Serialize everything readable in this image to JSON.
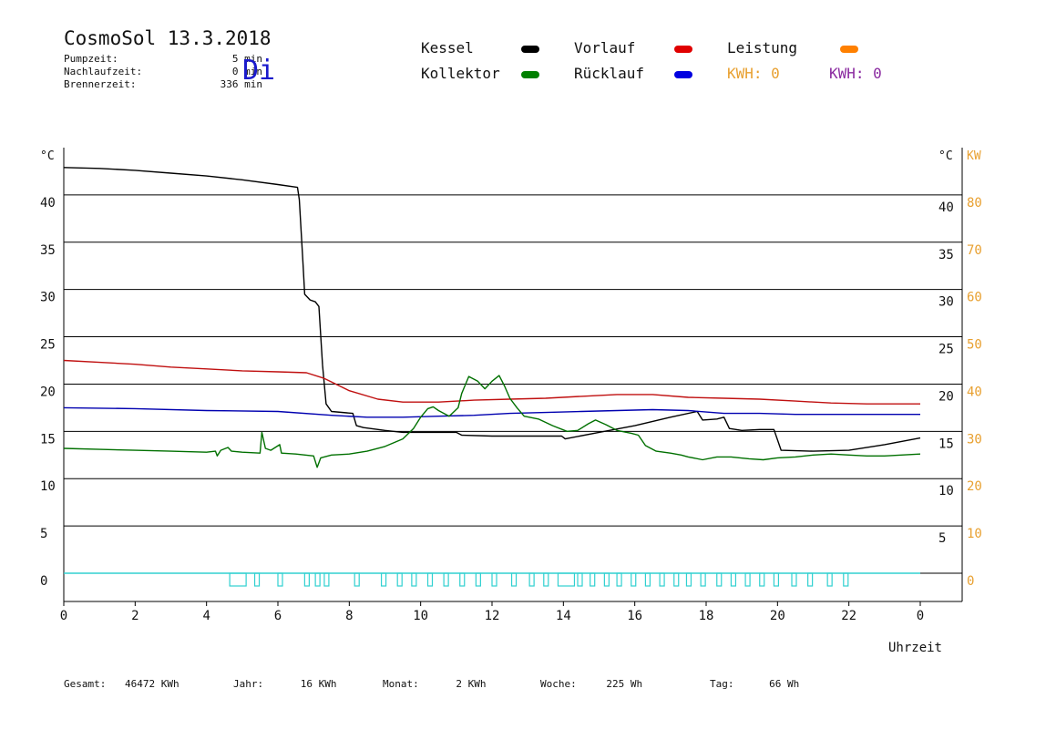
{
  "header": {
    "title": "CosmoSol 13.3.2018",
    "day": "Di",
    "stats": [
      {
        "label": "Pumpzeit:",
        "value": "5 min"
      },
      {
        "label": "Nachlaufzeit:",
        "value": "0 min"
      },
      {
        "label": "Brennerzeit:",
        "value": "336 min"
      }
    ]
  },
  "legend": {
    "kessel": {
      "label": "Kessel",
      "color": "#000000"
    },
    "vorlauf": {
      "label": "Vorlauf",
      "color": "#e00000"
    },
    "leistung": {
      "label": "Leistung",
      "color": "#ff8000"
    },
    "kollektor": {
      "label": "Kollektor",
      "color": "#008000"
    },
    "ruecklauf": {
      "label": "Rücklauf",
      "color": "#0000e0"
    },
    "kwh1": {
      "text": "KWH: 0",
      "color": "#e8a030"
    },
    "kwh2": {
      "text": "KWH: 0",
      "color": "#8a2aa0"
    }
  },
  "footer": {
    "items": [
      {
        "label": "Gesamt:",
        "value": "46472 KWh"
      },
      {
        "label": "Jahr:",
        "value": "16 KWh"
      },
      {
        "label": "Monat:",
        "value": "2 KWh"
      },
      {
        "label": "Woche:",
        "value": "225 Wh"
      },
      {
        "label": "Tag:",
        "value": "66 Wh"
      }
    ]
  },
  "chart_data": {
    "type": "line",
    "xlabel": "Uhrzeit",
    "ylabel_left": "°C",
    "ylabel_right": "°C",
    "ylabel_power": "KW",
    "xlim": [
      0,
      24
    ],
    "ylim": [
      0,
      45
    ],
    "power_lim": [
      0,
      90
    ],
    "x_ticks": [
      "0",
      "2",
      "4",
      "6",
      "8",
      "10",
      "12",
      "14",
      "16",
      "18",
      "20",
      "22",
      "0"
    ],
    "y_ticks_left": [
      "0",
      "5",
      "10",
      "15",
      "20",
      "25",
      "30",
      "35",
      "40"
    ],
    "y_ticks_right": [
      "5",
      "10",
      "15",
      "20",
      "25",
      "30",
      "35",
      "40"
    ],
    "y_ticks_power": [
      "0",
      "10",
      "20",
      "30",
      "40",
      "50",
      "60",
      "70",
      "80"
    ],
    "grid": true,
    "series": [
      {
        "name": "Kessel",
        "color": "#000000",
        "points": [
          [
            0,
            42.9
          ],
          [
            1,
            42.8
          ],
          [
            2,
            42.6
          ],
          [
            3,
            42.3
          ],
          [
            4,
            42.0
          ],
          [
            5,
            41.6
          ],
          [
            6,
            41.1
          ],
          [
            6.55,
            40.8
          ],
          [
            6.6,
            39.5
          ],
          [
            6.7,
            33
          ],
          [
            6.75,
            29.5
          ],
          [
            6.9,
            28.9
          ],
          [
            7.05,
            28.7
          ],
          [
            7.15,
            28.2
          ],
          [
            7.25,
            22
          ],
          [
            7.35,
            17.9
          ],
          [
            7.5,
            17.1
          ],
          [
            8.1,
            16.9
          ],
          [
            8.2,
            15.6
          ],
          [
            8.4,
            15.4
          ],
          [
            9,
            15.1
          ],
          [
            9.5,
            14.9
          ],
          [
            11,
            14.9
          ],
          [
            11.15,
            14.6
          ],
          [
            12,
            14.5
          ],
          [
            13,
            14.5
          ],
          [
            13.95,
            14.5
          ],
          [
            14.05,
            14.2
          ],
          [
            15,
            14.9
          ],
          [
            16,
            15.6
          ],
          [
            17,
            16.5
          ],
          [
            17.75,
            17.1
          ],
          [
            17.9,
            16.2
          ],
          [
            18.3,
            16.3
          ],
          [
            18.5,
            16.5
          ],
          [
            18.65,
            15.3
          ],
          [
            19.0,
            15.1
          ],
          [
            19.5,
            15.2
          ],
          [
            19.9,
            15.2
          ],
          [
            20.1,
            13.0
          ],
          [
            21,
            12.9
          ],
          [
            22,
            13.0
          ],
          [
            23,
            13.6
          ],
          [
            24,
            14.3
          ]
        ]
      },
      {
        "name": "Vorlauf",
        "color": "#c01010",
        "points": [
          [
            0,
            22.5
          ],
          [
            1,
            22.3
          ],
          [
            2,
            22.1
          ],
          [
            3,
            21.8
          ],
          [
            4,
            21.6
          ],
          [
            5,
            21.4
          ],
          [
            6,
            21.3
          ],
          [
            6.8,
            21.2
          ],
          [
            7.3,
            20.6
          ],
          [
            8,
            19.3
          ],
          [
            8.8,
            18.4
          ],
          [
            9.5,
            18.1
          ],
          [
            10.5,
            18.1
          ],
          [
            11.5,
            18.3
          ],
          [
            12.5,
            18.4
          ],
          [
            13.5,
            18.5
          ],
          [
            14.5,
            18.7
          ],
          [
            15.5,
            18.9
          ],
          [
            16.5,
            18.9
          ],
          [
            17.5,
            18.6
          ],
          [
            18.5,
            18.5
          ],
          [
            19.5,
            18.4
          ],
          [
            20.5,
            18.2
          ],
          [
            21.5,
            18.0
          ],
          [
            22.5,
            17.9
          ],
          [
            24,
            17.9
          ]
        ]
      },
      {
        "name": "Rücklauf",
        "color": "#0000b0",
        "points": [
          [
            0,
            17.5
          ],
          [
            2,
            17.4
          ],
          [
            4,
            17.2
          ],
          [
            6,
            17.1
          ],
          [
            7.5,
            16.7
          ],
          [
            8.5,
            16.5
          ],
          [
            9.5,
            16.5
          ],
          [
            10.5,
            16.6
          ],
          [
            11.5,
            16.7
          ],
          [
            12.5,
            16.9
          ],
          [
            13.5,
            17.0
          ],
          [
            14.5,
            17.1
          ],
          [
            15.5,
            17.2
          ],
          [
            16.5,
            17.3
          ],
          [
            17.5,
            17.2
          ],
          [
            18.5,
            16.9
          ],
          [
            19.5,
            16.9
          ],
          [
            20.5,
            16.8
          ],
          [
            21.5,
            16.8
          ],
          [
            22.5,
            16.8
          ],
          [
            24,
            16.8
          ]
        ]
      },
      {
        "name": "Kollektor",
        "color": "#007000",
        "points": [
          [
            0,
            13.2
          ],
          [
            1,
            13.1
          ],
          [
            2,
            13.0
          ],
          [
            3,
            12.9
          ],
          [
            4,
            12.8
          ],
          [
            4.25,
            12.9
          ],
          [
            4.3,
            12.4
          ],
          [
            4.4,
            13.0
          ],
          [
            4.6,
            13.3
          ],
          [
            4.7,
            12.9
          ],
          [
            5,
            12.8
          ],
          [
            5.5,
            12.7
          ],
          [
            5.55,
            14.9
          ],
          [
            5.65,
            13.2
          ],
          [
            5.8,
            13.0
          ],
          [
            6.05,
            13.6
          ],
          [
            6.1,
            12.7
          ],
          [
            6.5,
            12.6
          ],
          [
            7,
            12.4
          ],
          [
            7.1,
            11.2
          ],
          [
            7.2,
            12.2
          ],
          [
            7.5,
            12.5
          ],
          [
            8,
            12.6
          ],
          [
            8.5,
            12.9
          ],
          [
            9,
            13.4
          ],
          [
            9.5,
            14.2
          ],
          [
            9.8,
            15.3
          ],
          [
            10,
            16.5
          ],
          [
            10.2,
            17.4
          ],
          [
            10.35,
            17.6
          ],
          [
            10.5,
            17.2
          ],
          [
            10.8,
            16.6
          ],
          [
            11.05,
            17.5
          ],
          [
            11.15,
            19.0
          ],
          [
            11.35,
            20.8
          ],
          [
            11.6,
            20.3
          ],
          [
            11.8,
            19.5
          ],
          [
            12,
            20.3
          ],
          [
            12.2,
            20.9
          ],
          [
            12.35,
            19.8
          ],
          [
            12.5,
            18.5
          ],
          [
            12.7,
            17.5
          ],
          [
            12.9,
            16.6
          ],
          [
            13.3,
            16.3
          ],
          [
            13.7,
            15.6
          ],
          [
            14.1,
            15.0
          ],
          [
            14.4,
            15.1
          ],
          [
            14.7,
            15.8
          ],
          [
            14.9,
            16.2
          ],
          [
            15.2,
            15.7
          ],
          [
            15.5,
            15.1
          ],
          [
            15.9,
            14.8
          ],
          [
            16.1,
            14.6
          ],
          [
            16.3,
            13.5
          ],
          [
            16.6,
            12.9
          ],
          [
            17,
            12.7
          ],
          [
            17.3,
            12.5
          ],
          [
            17.5,
            12.3
          ],
          [
            17.9,
            12.0
          ],
          [
            18.3,
            12.3
          ],
          [
            18.7,
            12.3
          ],
          [
            19.2,
            12.1
          ],
          [
            19.6,
            12.0
          ],
          [
            20,
            12.2
          ],
          [
            20.5,
            12.3
          ],
          [
            21,
            12.5
          ],
          [
            21.5,
            12.6
          ],
          [
            22,
            12.5
          ],
          [
            22.5,
            12.4
          ],
          [
            23,
            12.4
          ],
          [
            24,
            12.6
          ]
        ]
      },
      {
        "name": "Leistung",
        "color": "#ff8000",
        "points": [
          [
            0,
            0
          ],
          [
            24,
            0
          ]
        ]
      }
    ],
    "pump_pulses": {
      "color": "#30d0d0",
      "x": [
        4.65,
        5.35,
        6.0,
        6.75,
        7.05,
        7.3,
        8.15,
        8.9,
        9.35,
        9.75,
        10.2,
        10.65,
        11.1,
        11.55,
        12.0,
        12.55,
        13.05,
        13.45,
        13.85,
        14.4,
        14.75,
        15.15,
        15.5,
        15.9,
        16.3,
        16.7,
        17.1,
        17.45,
        17.85,
        18.3,
        18.7,
        19.1,
        19.5,
        19.9,
        20.4,
        20.85,
        21.4,
        21.85
      ],
      "big": [
        4.65,
        13.85
      ]
    }
  }
}
